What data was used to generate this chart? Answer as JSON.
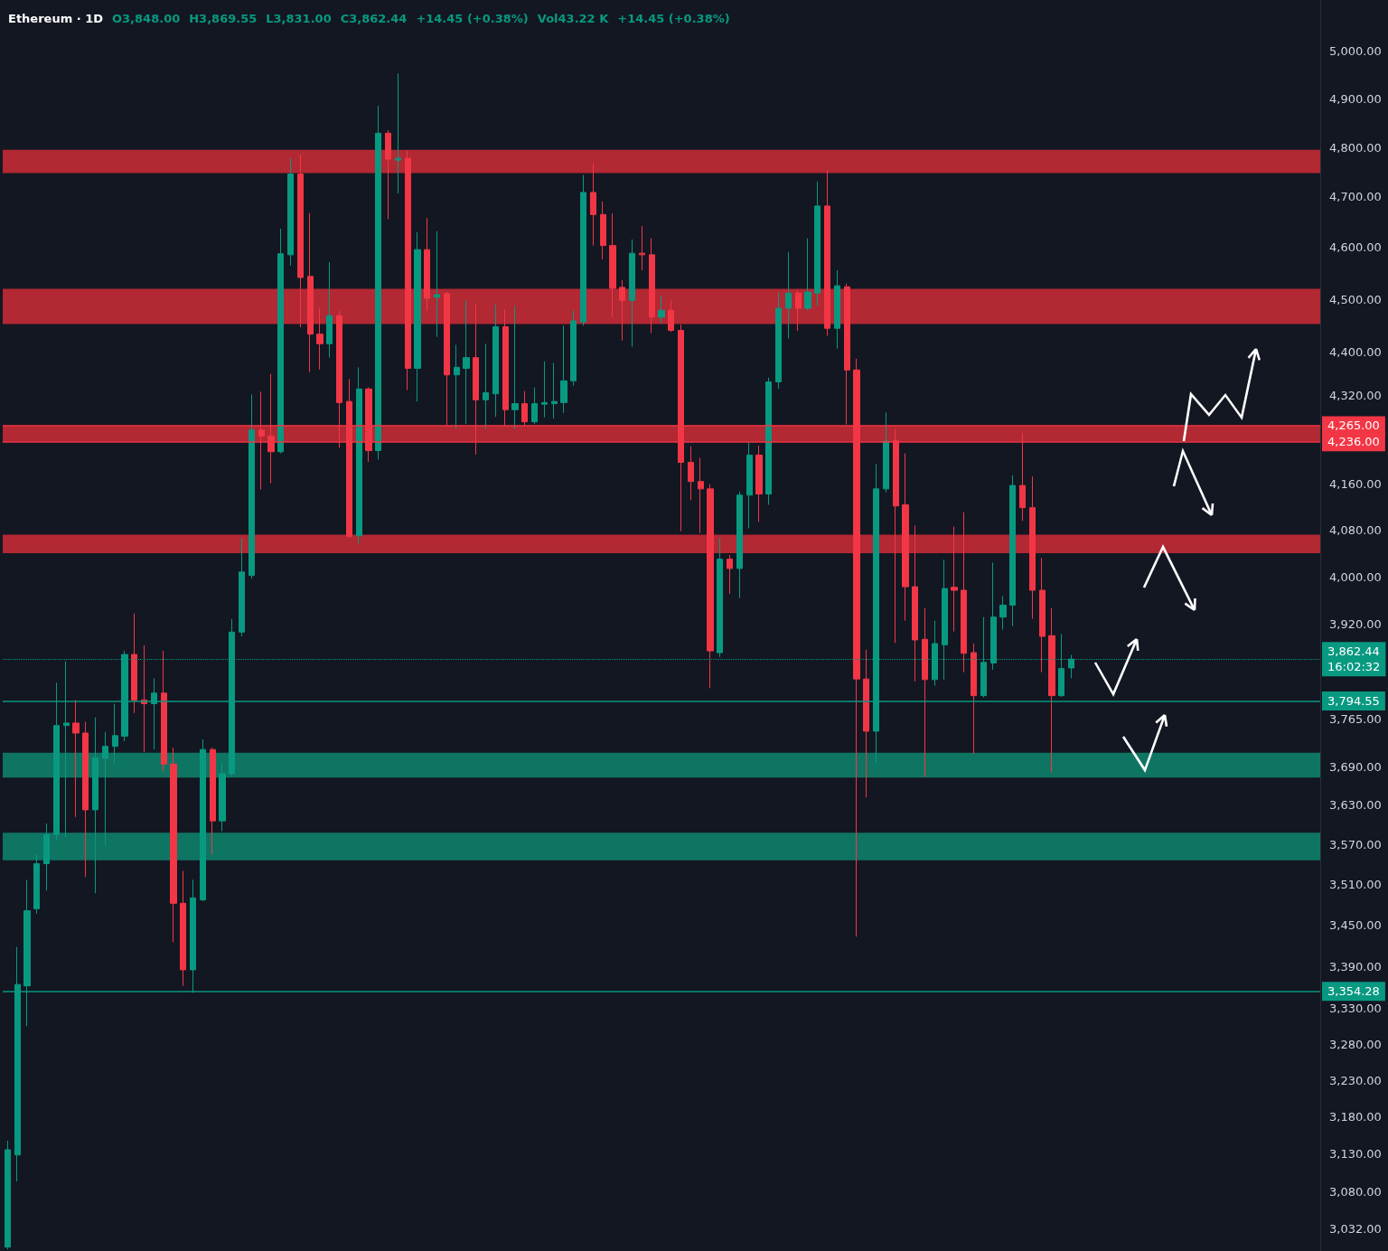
{
  "chart_data": {
    "type": "candlestick",
    "title": "Ethereum · 1D",
    "annotations": [
      "O3,848.00",
      "H3,869.55",
      "L3,831.00",
      "C3,862.44",
      "+14.45 (+0.38%)",
      "Vol43.22 K",
      "+14.45 (+0.38%)"
    ],
    "categories": [
      null,
      null,
      null,
      null,
      null,
      null,
      null,
      null,
      null,
      null,
      null,
      null,
      null,
      null,
      null,
      null,
      null,
      null,
      null,
      null,
      null,
      null,
      null,
      null,
      null,
      null,
      null,
      null,
      null,
      null,
      null,
      null,
      null,
      null,
      null,
      null,
      null,
      null,
      null,
      null,
      null,
      null,
      null,
      null,
      null,
      null,
      null,
      null,
      null,
      null,
      null,
      null,
      null,
      null,
      null,
      null,
      null,
      null,
      null,
      null,
      null,
      null,
      null,
      null,
      null,
      null,
      null,
      null,
      null,
      null,
      null,
      null,
      null,
      null,
      null,
      null,
      null,
      null,
      null,
      null,
      null,
      null,
      null,
      null,
      null,
      null,
      null,
      null,
      null,
      null,
      null,
      null,
      null,
      null,
      null,
      null,
      null,
      null,
      null,
      null,
      null,
      null,
      null,
      null,
      null,
      null,
      null,
      null,
      null,
      null,
      null,
      null,
      null,
      null,
      null,
      null,
      null,
      null,
      null,
      null,
      null,
      null,
      null,
      null,
      null,
      null,
      null,
      null,
      null,
      null,
      null,
      null,
      null,
      null,
      null
    ],
    "ohlc": [
      [
        3009,
        3148,
        3006,
        3136
      ],
      [
        3129,
        3418,
        3094,
        3364
      ],
      [
        3362,
        3517,
        3305,
        3471
      ],
      [
        3474,
        3555,
        3467,
        3541
      ],
      [
        3541,
        3602,
        3501,
        3585
      ],
      [
        3585,
        3824,
        3576,
        3755
      ],
      [
        3755,
        3859,
        3581,
        3759
      ],
      [
        3759,
        3796,
        3612,
        3743
      ],
      [
        3743,
        3761,
        3521,
        3623
      ],
      [
        3623,
        3768,
        3497,
        3704
      ],
      [
        3703,
        3745,
        3569,
        3722
      ],
      [
        3722,
        3790,
        3696,
        3739
      ],
      [
        3738,
        3876,
        3730,
        3870
      ],
      [
        3870,
        3938,
        3775,
        3796
      ],
      [
        3796,
        3885,
        3713,
        3790
      ],
      [
        3790,
        3831,
        3717,
        3807
      ],
      [
        3807,
        3876,
        3683,
        3694
      ],
      [
        3694,
        3720,
        3425,
        3482
      ],
      [
        3482,
        3530,
        3362,
        3385
      ],
      [
        3385,
        3517,
        3352,
        3490
      ],
      [
        3487,
        3733,
        3485,
        3717
      ],
      [
        3717,
        3720,
        3555,
        3606
      ],
      [
        3606,
        3696,
        3590,
        3679
      ],
      [
        3679,
        3929,
        3674,
        3907
      ],
      [
        3907,
        4066,
        3900,
        4008
      ],
      [
        4002,
        4322,
        3997,
        4257
      ],
      [
        4257,
        4327,
        4151,
        4246
      ],
      [
        4246,
        4360,
        4162,
        4218
      ],
      [
        4218,
        4637,
        4215,
        4588
      ],
      [
        4586,
        4778,
        4565,
        4746
      ],
      [
        4746,
        4785,
        4447,
        4542
      ],
      [
        4544,
        4668,
        4363,
        4434
      ],
      [
        4434,
        4484,
        4368,
        4416
      ],
      [
        4416,
        4572,
        4390,
        4469
      ],
      [
        4469,
        4478,
        4225,
        4307
      ],
      [
        4309,
        4350,
        4066,
        4069
      ],
      [
        4070,
        4372,
        4056,
        4332
      ],
      [
        4332,
        4335,
        4200,
        4220
      ],
      [
        4220,
        4885,
        4204,
        4829
      ],
      [
        4829,
        4835,
        4656,
        4776
      ],
      [
        4774,
        4953,
        4707,
        4778
      ],
      [
        4778,
        4793,
        4330,
        4370
      ],
      [
        4370,
        4630,
        4309,
        4596
      ],
      [
        4596,
        4658,
        4478,
        4502
      ],
      [
        4504,
        4632,
        4429,
        4509
      ],
      [
        4511,
        4514,
        4265,
        4358
      ],
      [
        4358,
        4414,
        4259,
        4372
      ],
      [
        4370,
        4498,
        4268,
        4390
      ],
      [
        4390,
        4490,
        4213,
        4312
      ],
      [
        4312,
        4416,
        4259,
        4325
      ],
      [
        4323,
        4490,
        4281,
        4448
      ],
      [
        4448,
        4481,
        4265,
        4294
      ],
      [
        4294,
        4488,
        4259,
        4305
      ],
      [
        4305,
        4328,
        4265,
        4272
      ],
      [
        4272,
        4335,
        4268,
        4305
      ],
      [
        4304,
        4383,
        4280,
        4307
      ],
      [
        4305,
        4380,
        4278,
        4309
      ],
      [
        4307,
        4450,
        4288,
        4347
      ],
      [
        4347,
        4479,
        4338,
        4459
      ],
      [
        4457,
        4744,
        4450,
        4709
      ],
      [
        4709,
        4767,
        4604,
        4665
      ],
      [
        4665,
        4691,
        4577,
        4604
      ],
      [
        4604,
        4667,
        4466,
        4521
      ],
      [
        4523,
        4537,
        4422,
        4498
      ],
      [
        4498,
        4616,
        4410,
        4589
      ],
      [
        4589,
        4642,
        4556,
        4586
      ],
      [
        4586,
        4618,
        4436,
        4466
      ],
      [
        4466,
        4507,
        4455,
        4479
      ],
      [
        4479,
        4498,
        4438,
        4441
      ],
      [
        4441,
        4452,
        4078,
        4199
      ],
      [
        4199,
        4228,
        4132,
        4165
      ],
      [
        4165,
        4207,
        4075,
        4152
      ],
      [
        4152,
        4160,
        3815,
        3876
      ],
      [
        3873,
        4066,
        3866,
        4030
      ],
      [
        4030,
        4037,
        3971,
        4014
      ],
      [
        4014,
        4147,
        3964,
        4141
      ],
      [
        4141,
        4234,
        4083,
        4212
      ],
      [
        4212,
        4229,
        4094,
        4143
      ],
      [
        4143,
        4353,
        4124,
        4345
      ],
      [
        4345,
        4514,
        4332,
        4483
      ],
      [
        4483,
        4591,
        4426,
        4512
      ],
      [
        4512,
        4517,
        4440,
        4483
      ],
      [
        4483,
        4618,
        4479,
        4514
      ],
      [
        4512,
        4731,
        4488,
        4682
      ],
      [
        4682,
        4754,
        4431,
        4445
      ],
      [
        4445,
        4556,
        4407,
        4526
      ],
      [
        4524,
        4530,
        4267,
        4367
      ],
      [
        4367,
        4388,
        3433,
        3830
      ],
      [
        3830,
        3878,
        3642,
        3746
      ],
      [
        3746,
        4196,
        3696,
        4152
      ],
      [
        4152,
        4289,
        4146,
        4237
      ],
      [
        4238,
        4259,
        3889,
        4122
      ],
      [
        4124,
        4215,
        3926,
        3983
      ],
      [
        3983,
        4088,
        3826,
        3894
      ],
      [
        3895,
        3947,
        3674,
        3829
      ],
      [
        3829,
        3926,
        3819,
        3888
      ],
      [
        3886,
        4029,
        3829,
        3980
      ],
      [
        3982,
        4086,
        3908,
        3977
      ],
      [
        3977,
        4111,
        3841,
        3872
      ],
      [
        3873,
        3888,
        3710,
        3803
      ],
      [
        3803,
        3932,
        3800,
        3857
      ],
      [
        3856,
        4024,
        3845,
        3932
      ],
      [
        3932,
        3967,
        3911,
        3952
      ],
      [
        3952,
        4176,
        3917,
        4158
      ],
      [
        4158,
        4252,
        4096,
        4119
      ],
      [
        4119,
        4174,
        3929,
        3977
      ],
      [
        3977,
        4032,
        3841,
        3900
      ],
      [
        3901,
        3947,
        3681,
        3803
      ],
      [
        3803,
        3904,
        3801,
        3847
      ],
      [
        3848,
        3869.55,
        3831,
        3862.44
      ],
      null,
      null,
      null,
      null,
      null,
      null,
      null,
      null,
      null,
      null,
      null,
      null,
      null,
      null,
      null,
      null,
      null,
      null,
      null,
      null,
      null,
      null,
      null,
      null,
      null
    ],
    "log": true,
    "ylim": [
      3004,
      5110
    ],
    "yticks": [
      {
        "value": 5000,
        "label": "5,000.00"
      },
      {
        "value": 4900,
        "label": "4,900.00"
      },
      {
        "value": 4800,
        "label": "4,800.00"
      },
      {
        "value": 4700,
        "label": "4,700.00"
      },
      {
        "value": 4600,
        "label": "4,600.00"
      },
      {
        "value": 4500,
        "label": "4,500.00"
      },
      {
        "value": 4400,
        "label": "4,400.00"
      },
      {
        "value": 4320,
        "label": "4,320.00"
      },
      {
        "value": 4160,
        "label": "4,160.00"
      },
      {
        "value": 4080,
        "label": "4,080.00"
      },
      {
        "value": 4000,
        "label": "4,000.00"
      },
      {
        "value": 3920,
        "label": "3,920.00"
      },
      {
        "value": 3765,
        "label": "3,765.00"
      },
      {
        "value": 3690,
        "label": "3,690.00"
      },
      {
        "value": 3630,
        "label": "3,630.00"
      },
      {
        "value": 3570,
        "label": "3,570.00"
      },
      {
        "value": 3510,
        "label": "3,510.00"
      },
      {
        "value": 3450,
        "label": "3,450.00"
      },
      {
        "value": 3390,
        "label": "3,390.00"
      },
      {
        "value": 3330,
        "label": "3,330.00"
      },
      {
        "value": 3280,
        "label": "3,280.00"
      },
      {
        "value": 3230,
        "label": "3,230.00"
      },
      {
        "value": 3180,
        "label": "3,180.00"
      },
      {
        "value": 3130,
        "label": "3,130.00"
      },
      {
        "value": 3080,
        "label": "3,080.00"
      },
      {
        "value": 3032,
        "label": "3,032.00"
      }
    ],
    "bands": [
      {
        "axis": "y",
        "from": 4748,
        "to": 4795,
        "color": "#b22833"
      },
      {
        "axis": "y",
        "from": 4453,
        "to": 4520,
        "color": "#b22833"
      },
      {
        "axis": "y",
        "from": 4236,
        "to": 4265,
        "color": "#b22833"
      },
      {
        "axis": "y",
        "from": 4040,
        "to": 4072,
        "color": "#b22833"
      },
      {
        "axis": "y",
        "from": 3673,
        "to": 3712,
        "color": "#0f7563"
      },
      {
        "axis": "y",
        "from": 3546,
        "to": 3588,
        "color": "#0f7563"
      }
    ],
    "ref_lines": [
      {
        "axis": "y",
        "value": 4265,
        "label": "4,265.00",
        "color": "#f23645",
        "line_style": "solid"
      },
      {
        "axis": "y",
        "value": 4236,
        "label": "4,236.00",
        "color": "#f23645",
        "line_style": "solid"
      },
      {
        "axis": "y",
        "value": 3862.44,
        "label": "3,862.44\n16:02:32",
        "color": "#089981",
        "line_style": "dotted"
      },
      {
        "axis": "y",
        "value": 3794.55,
        "label": "3,794.55",
        "color": "#089981",
        "line_style": "solid"
      },
      {
        "axis": "y",
        "value": 3354.28,
        "label": "3,354.28",
        "color": "#089981",
        "line_style": "solid"
      }
    ],
    "tick_labels": "y",
    "grid": false
  }
}
